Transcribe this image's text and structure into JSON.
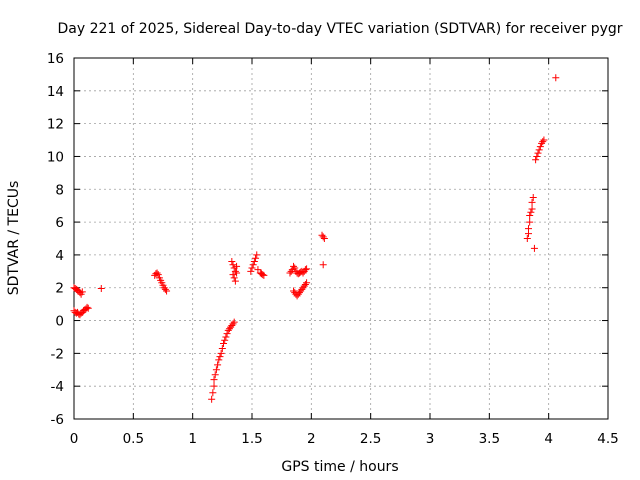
{
  "chart_data": {
    "type": "scatter",
    "title": "Day 221 of 2025, Sidereal Day-to-day VTEC variation (SDTVAR) for receiver pygr",
    "xlabel": "GPS time / hours",
    "ylabel": "SDTVAR / TECUs",
    "xlim": [
      0,
      4.5
    ],
    "ylim": [
      -6,
      16
    ],
    "xticks": [
      0,
      0.5,
      1,
      1.5,
      2,
      2.5,
      3,
      3.5,
      4,
      4.5
    ],
    "xtick_labels": [
      "0",
      "0.5",
      "1",
      "1.5",
      "2",
      "2.5",
      "3",
      "3.5",
      "4",
      "4.5"
    ],
    "yticks": [
      -6,
      -4,
      -2,
      0,
      2,
      4,
      6,
      8,
      10,
      12,
      14,
      16
    ],
    "ytick_labels": [
      "-6",
      "-4",
      "-2",
      "0",
      "2",
      "4",
      "6",
      "8",
      "10",
      "12",
      "14",
      "16"
    ],
    "grid": true,
    "marker": "+",
    "color": "#ff0000",
    "series": [
      {
        "name": "SDTVAR",
        "points": [
          [
            0.0,
            2.0
          ],
          [
            0.01,
            1.95
          ],
          [
            0.02,
            1.9
          ],
          [
            0.03,
            1.85
          ],
          [
            0.04,
            1.8
          ],
          [
            0.05,
            1.7
          ],
          [
            0.06,
            1.6
          ],
          [
            0.07,
            1.75
          ],
          [
            0.0,
            0.6
          ],
          [
            0.01,
            0.5
          ],
          [
            0.02,
            0.45
          ],
          [
            0.03,
            0.5
          ],
          [
            0.04,
            0.4
          ],
          [
            0.05,
            0.35
          ],
          [
            0.06,
            0.45
          ],
          [
            0.07,
            0.5
          ],
          [
            0.08,
            0.6
          ],
          [
            0.09,
            0.65
          ],
          [
            0.1,
            0.7
          ],
          [
            0.11,
            0.8
          ],
          [
            0.12,
            0.75
          ],
          [
            0.23,
            1.95
          ],
          [
            0.68,
            2.75
          ],
          [
            0.69,
            2.85
          ],
          [
            0.7,
            2.9
          ],
          [
            0.71,
            2.8
          ],
          [
            0.72,
            2.6
          ],
          [
            0.73,
            2.45
          ],
          [
            0.74,
            2.3
          ],
          [
            0.75,
            2.15
          ],
          [
            0.76,
            2.0
          ],
          [
            0.77,
            1.9
          ],
          [
            0.78,
            1.8
          ],
          [
            1.16,
            -4.8
          ],
          [
            1.17,
            -4.4
          ],
          [
            1.18,
            -4.0
          ],
          [
            1.18,
            -3.6
          ],
          [
            1.19,
            -3.3
          ],
          [
            1.2,
            -3.0
          ],
          [
            1.21,
            -2.7
          ],
          [
            1.22,
            -2.4
          ],
          [
            1.23,
            -2.2
          ],
          [
            1.24,
            -2.0
          ],
          [
            1.25,
            -1.7
          ],
          [
            1.26,
            -1.4
          ],
          [
            1.27,
            -1.2
          ],
          [
            1.28,
            -1.0
          ],
          [
            1.29,
            -0.8
          ],
          [
            1.3,
            -0.6
          ],
          [
            1.31,
            -0.5
          ],
          [
            1.32,
            -0.4
          ],
          [
            1.33,
            -0.3
          ],
          [
            1.34,
            -0.2
          ],
          [
            1.35,
            -0.1
          ],
          [
            1.33,
            3.6
          ],
          [
            1.34,
            3.4
          ],
          [
            1.35,
            3.2
          ],
          [
            1.36,
            3.0
          ],
          [
            1.34,
            2.8
          ],
          [
            1.35,
            2.6
          ],
          [
            1.36,
            2.4
          ],
          [
            1.37,
            2.9
          ],
          [
            1.37,
            3.3
          ],
          [
            1.49,
            3.0
          ],
          [
            1.5,
            3.2
          ],
          [
            1.51,
            3.4
          ],
          [
            1.52,
            3.6
          ],
          [
            1.53,
            3.8
          ],
          [
            1.54,
            4.0
          ],
          [
            1.55,
            3.1
          ],
          [
            1.57,
            2.9
          ],
          [
            1.58,
            2.85
          ],
          [
            1.59,
            2.8
          ],
          [
            1.6,
            2.75
          ],
          [
            1.82,
            2.9
          ],
          [
            1.83,
            3.0
          ],
          [
            1.84,
            3.1
          ],
          [
            1.85,
            3.3
          ],
          [
            1.86,
            3.2
          ],
          [
            1.87,
            3.0
          ],
          [
            1.88,
            2.9
          ],
          [
            1.89,
            2.85
          ],
          [
            1.9,
            2.9
          ],
          [
            1.91,
            2.95
          ],
          [
            1.92,
            3.0
          ],
          [
            1.93,
            2.9
          ],
          [
            1.94,
            3.0
          ],
          [
            1.95,
            3.1
          ],
          [
            1.96,
            3.15
          ],
          [
            1.85,
            1.8
          ],
          [
            1.86,
            1.7
          ],
          [
            1.87,
            1.6
          ],
          [
            1.88,
            1.5
          ],
          [
            1.89,
            1.6
          ],
          [
            1.9,
            1.7
          ],
          [
            1.91,
            1.8
          ],
          [
            1.92,
            1.9
          ],
          [
            1.93,
            2.0
          ],
          [
            1.94,
            2.1
          ],
          [
            1.95,
            2.2
          ],
          [
            1.96,
            2.3
          ],
          [
            2.09,
            5.2
          ],
          [
            2.1,
            5.1
          ],
          [
            2.11,
            5.0
          ],
          [
            2.1,
            3.4
          ],
          [
            3.82,
            5.0
          ],
          [
            3.83,
            5.3
          ],
          [
            3.83,
            5.6
          ],
          [
            3.84,
            6.0
          ],
          [
            3.84,
            6.4
          ],
          [
            3.85,
            6.6
          ],
          [
            3.86,
            6.8
          ],
          [
            3.86,
            7.2
          ],
          [
            3.87,
            7.5
          ],
          [
            3.88,
            4.4
          ],
          [
            3.89,
            9.8
          ],
          [
            3.9,
            10.0
          ],
          [
            3.91,
            10.2
          ],
          [
            3.92,
            10.4
          ],
          [
            3.93,
            10.6
          ],
          [
            3.94,
            10.8
          ],
          [
            3.95,
            10.9
          ],
          [
            3.96,
            11.0
          ],
          [
            4.06,
            14.8
          ]
        ]
      }
    ]
  }
}
